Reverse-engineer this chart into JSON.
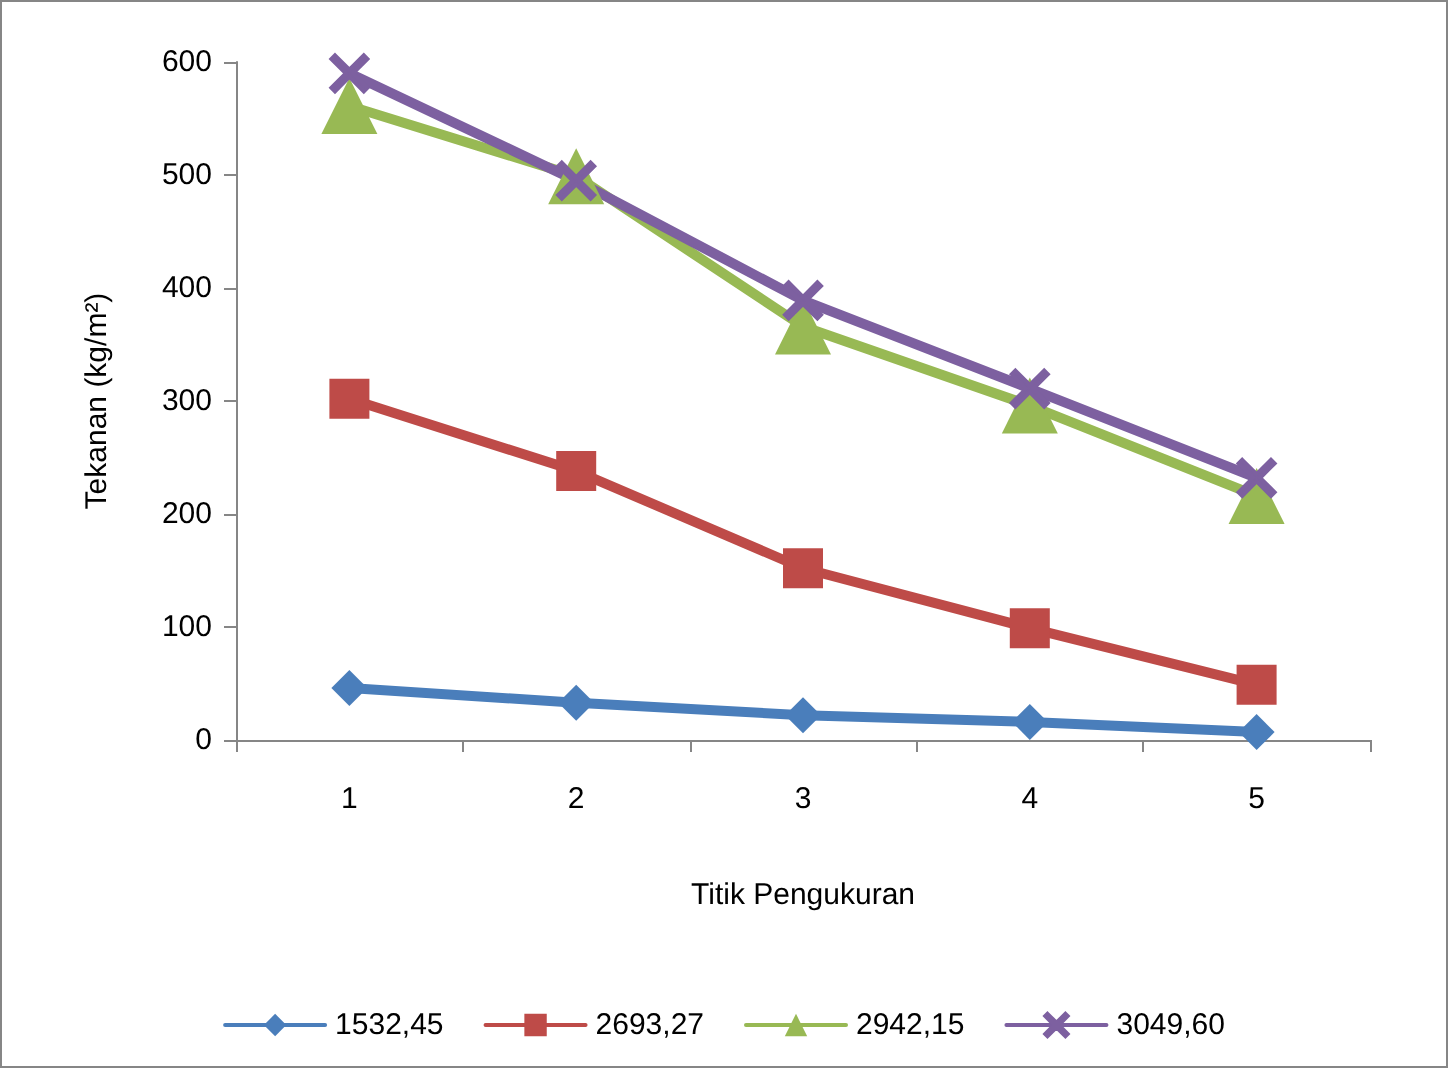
{
  "chart_data": {
    "type": "line",
    "xlabel": "Titik Pengukuran",
    "ylabel": "Tekanan (kg/m²)",
    "categories": [
      "1",
      "2",
      "3",
      "4",
      "5"
    ],
    "series": [
      {
        "name": "1532,45",
        "color": "#4a7ebb",
        "marker": "diamond",
        "values": [
          46,
          33,
          22,
          16,
          7
        ]
      },
      {
        "name": "2693,27",
        "color": "#be4b48",
        "marker": "square",
        "values": [
          302,
          238,
          152,
          99,
          49
        ]
      },
      {
        "name": "2942,15",
        "color": "#98b954",
        "marker": "triangle",
        "values": [
          561,
          499,
          366,
          296,
          216
        ]
      },
      {
        "name": "3049,60",
        "color": "#7d60a0",
        "marker": "cross",
        "values": [
          590,
          495,
          389,
          311,
          232
        ]
      }
    ],
    "ylim": [
      0,
      600
    ],
    "yticks": [
      0,
      100,
      200,
      300,
      400,
      500,
      600
    ],
    "grid": false,
    "legend": "bottom"
  }
}
